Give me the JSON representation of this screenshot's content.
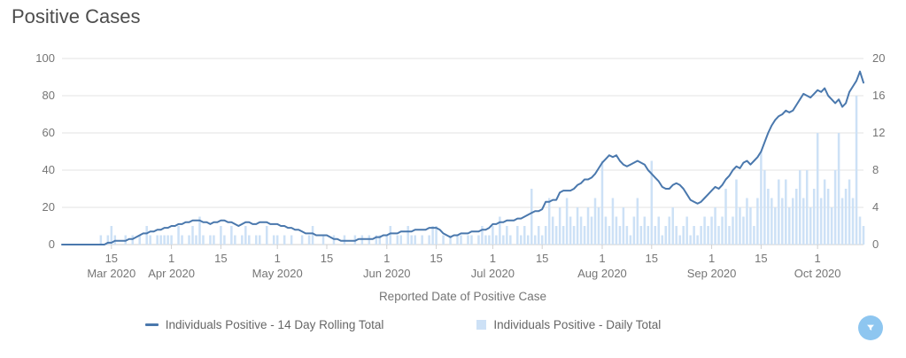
{
  "title": "Positive Cases",
  "x_axis": {
    "title": "Reported Date of Positive Case",
    "ticks": [
      {
        "index": 14,
        "day": "15",
        "month": "Mar 2020"
      },
      {
        "index": 31,
        "day": "1",
        "month": "Apr 2020"
      },
      {
        "index": 45,
        "day": "15",
        "month": ""
      },
      {
        "index": 61,
        "day": "1",
        "month": "May 2020"
      },
      {
        "index": 75,
        "day": "15",
        "month": ""
      },
      {
        "index": 92,
        "day": "1",
        "month": "Jun 2020"
      },
      {
        "index": 106,
        "day": "15",
        "month": ""
      },
      {
        "index": 122,
        "day": "1",
        "month": "Jul 2020"
      },
      {
        "index": 136,
        "day": "15",
        "month": ""
      },
      {
        "index": 153,
        "day": "1",
        "month": "Aug 2020"
      },
      {
        "index": 167,
        "day": "15",
        "month": ""
      },
      {
        "index": 184,
        "day": "1",
        "month": "Sep 2020"
      },
      {
        "index": 198,
        "day": "15",
        "month": ""
      },
      {
        "index": 214,
        "day": "1",
        "month": "Oct 2020"
      }
    ]
  },
  "y_axis_left": {
    "ticks": [
      100,
      80,
      60,
      40,
      20,
      0
    ],
    "min": 0,
    "max": 100
  },
  "y_axis_right": {
    "ticks": [
      20,
      16,
      12,
      8,
      4,
      0
    ],
    "min": 0,
    "max": 20
  },
  "legend": [
    {
      "label": "Individuals Positive - 14 Day Rolling Total",
      "marker": "line",
      "color": "#4a78ad"
    },
    {
      "label": "Individuals Positive - Daily Total",
      "marker": "square",
      "color": "#cde1f6"
    }
  ],
  "filter_button": {
    "icon": "filter-icon",
    "color": "#8ec6f0"
  },
  "colors": {
    "line": "#4a78ad",
    "bar": "#cde1f6",
    "gridline": "#e3e3e3",
    "baseline": "#cfcfcf",
    "tick": "#cfcfcf",
    "text": "#757575",
    "title": "#4d4d4d"
  },
  "chart_data": {
    "type": "combo",
    "title": "Positive Cases",
    "xlabel": "Reported Date of Positive Case",
    "x_start": "2020-03-01",
    "x_end": "2020-10-14",
    "x_frequency": "daily",
    "left_ylim": [
      0,
      100
    ],
    "right_ylim": [
      0,
      20
    ],
    "grid": true,
    "legend_position": "bottom",
    "series": [
      {
        "name": "Individuals Positive - 14 Day Rolling Total",
        "type": "line",
        "axis": "left",
        "color": "#4a78ad",
        "values": [
          0,
          0,
          0,
          0,
          0,
          0,
          0,
          0,
          0,
          0,
          0,
          0,
          0,
          1,
          1,
          2,
          2,
          2,
          2,
          3,
          3,
          4,
          5,
          6,
          6,
          7,
          7,
          8,
          8,
          9,
          9,
          10,
          10,
          11,
          11,
          12,
          12,
          13,
          13,
          13,
          12,
          12,
          11,
          12,
          12,
          13,
          13,
          12,
          12,
          11,
          10,
          11,
          12,
          12,
          11,
          11,
          12,
          12,
          12,
          11,
          11,
          11,
          10,
          10,
          9,
          9,
          8,
          8,
          7,
          6,
          6,
          6,
          5,
          5,
          5,
          5,
          4,
          3,
          3,
          2,
          2,
          2,
          2,
          2,
          3,
          3,
          3,
          3,
          3,
          4,
          4,
          5,
          5,
          6,
          6,
          6,
          7,
          7,
          7,
          7,
          8,
          8,
          8,
          8,
          9,
          9,
          9,
          8,
          6,
          5,
          4,
          5,
          5,
          6,
          6,
          6,
          7,
          7,
          7,
          8,
          8,
          9,
          11,
          11,
          12,
          12,
          13,
          13,
          13,
          14,
          14,
          15,
          16,
          17,
          18,
          18,
          19,
          23,
          23,
          24,
          24,
          28,
          29,
          29,
          29,
          30,
          32,
          33,
          35,
          35,
          36,
          38,
          41,
          44,
          46,
          48,
          47,
          48,
          45,
          43,
          42,
          43,
          44,
          45,
          44,
          43,
          40,
          38,
          36,
          34,
          31,
          30,
          30,
          32,
          33,
          32,
          30,
          27,
          24,
          23,
          22,
          23,
          25,
          27,
          29,
          31,
          30,
          32,
          35,
          37,
          40,
          42,
          41,
          44,
          45,
          43,
          45,
          47,
          50,
          55,
          60,
          64,
          67,
          69,
          70,
          72,
          71,
          72,
          75,
          78,
          81,
          80,
          79,
          81,
          83,
          82,
          84,
          80,
          78,
          76,
          78,
          74,
          76,
          82,
          85,
          88,
          93,
          87
        ]
      },
      {
        "name": "Individuals Positive - Daily Total",
        "type": "bar",
        "axis": "right",
        "color": "#cde1f6",
        "values": [
          0,
          0,
          0,
          0,
          0,
          0,
          0,
          0,
          0,
          0,
          0,
          1,
          0,
          1,
          2,
          1,
          0,
          0,
          1,
          0,
          1,
          0,
          1,
          0,
          2,
          1,
          0,
          1,
          1,
          1,
          1,
          1,
          0,
          2,
          1,
          0,
          1,
          2,
          1,
          3,
          1,
          0,
          1,
          1,
          0,
          2,
          1,
          0,
          2,
          1,
          0,
          1,
          2,
          1,
          0,
          1,
          1,
          0,
          2,
          0,
          1,
          1,
          0,
          1,
          0,
          1,
          0,
          0,
          1,
          0,
          1,
          2,
          0,
          0,
          1,
          0,
          0,
          1,
          0,
          0,
          1,
          0,
          0,
          1,
          0,
          1,
          0,
          1,
          0,
          1,
          1,
          0,
          1,
          2,
          0,
          1,
          1,
          0,
          2,
          1,
          1,
          0,
          1,
          0,
          1,
          2,
          2,
          0,
          1,
          0,
          1,
          0,
          1,
          1,
          0,
          1,
          1,
          0,
          1,
          2,
          1,
          1,
          2,
          1,
          3,
          1,
          2,
          1,
          0,
          2,
          1,
          2,
          1,
          6,
          1,
          2,
          1,
          2,
          5,
          3,
          2,
          4,
          2,
          5,
          3,
          2,
          4,
          3,
          2,
          4,
          3,
          5,
          4,
          9,
          3,
          2,
          5,
          3,
          2,
          4,
          2,
          1,
          3,
          5,
          2,
          3,
          2,
          9,
          2,
          3,
          1,
          2,
          3,
          4,
          2,
          1,
          2,
          3,
          1,
          2,
          1,
          2,
          3,
          2,
          3,
          4,
          2,
          3,
          6,
          2,
          3,
          7,
          4,
          3,
          5,
          4,
          2,
          5,
          10,
          8,
          6,
          5,
          4,
          7,
          5,
          7,
          4,
          5,
          6,
          8,
          5,
          8,
          4,
          6,
          12,
          5,
          7,
          6,
          4,
          8,
          12,
          5,
          6,
          7,
          5,
          16,
          3,
          2
        ]
      }
    ]
  }
}
